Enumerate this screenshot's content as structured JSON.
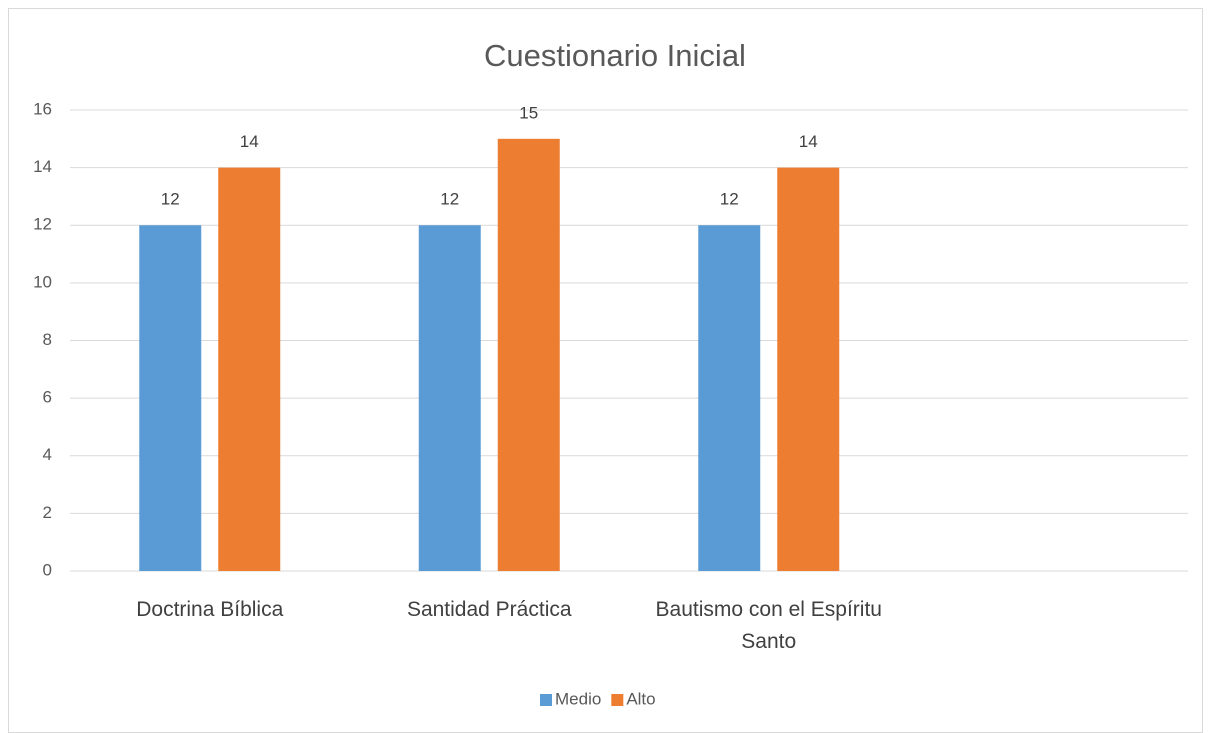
{
  "chart_data": {
    "type": "bar",
    "title": "Cuestionario Inicial",
    "categories": [
      "Doctrina Bíblica",
      "Santidad Práctica",
      "Bautismo con el Espíritu Santo",
      null
    ],
    "series": [
      {
        "name": "Medio",
        "color": "#5b9bd5",
        "values": [
          12,
          12,
          12,
          null
        ]
      },
      {
        "name": "Alto",
        "color": "#ed7d31",
        "values": [
          14,
          15,
          14,
          null
        ]
      }
    ],
    "ylim": [
      0,
      16
    ],
    "yticks": [
      0,
      2,
      4,
      6,
      8,
      10,
      12,
      14,
      16
    ],
    "grid": true,
    "legend": "bottom"
  }
}
